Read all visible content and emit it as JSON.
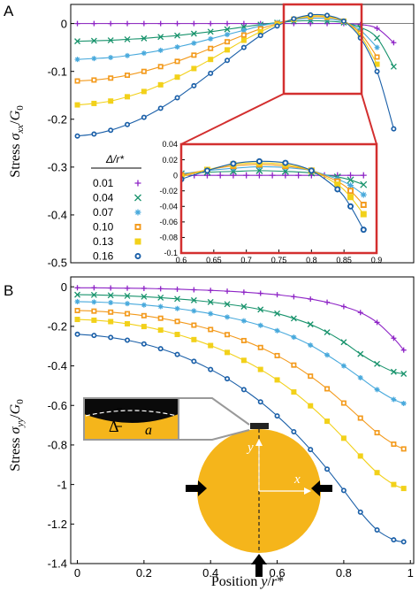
{
  "figure": {
    "x_label": "Position y/r*",
    "legend_title": "Δ/r*",
    "schematic": {
      "delta_label": "Δ",
      "a_label": "a",
      "x_label": "x",
      "y_label": "y"
    }
  },
  "chart_data": [
    {
      "type": "scatter",
      "panel_label": "A",
      "ylabel": "Stress σ_xx/G_0",
      "xlabel": "",
      "xlim": [
        -0.02,
        1.01
      ],
      "ylim": [
        -0.5,
        0.04
      ],
      "x_ticks": [],
      "y_ticks": [
        "0",
        "-0.1",
        "-0.2",
        "-0.3",
        "-0.4",
        "-0.5"
      ],
      "series": [
        {
          "name": "0.01",
          "color": "#8e24c6",
          "marker": "plus",
          "x": [
            0.0,
            0.05,
            0.1,
            0.15,
            0.2,
            0.25,
            0.3,
            0.35,
            0.4,
            0.45,
            0.5,
            0.55,
            0.6,
            0.65,
            0.7,
            0.75,
            0.8,
            0.85,
            0.9,
            0.95
          ],
          "values": [
            0.0,
            0.0,
            0.0,
            0.0,
            0.0,
            0.0,
            0.0,
            0.0,
            0.0,
            0.0,
            0.0,
            0.0,
            0.0,
            0.0,
            0.0,
            0.0,
            0.0,
            -0.002,
            -0.01,
            -0.04
          ]
        },
        {
          "name": "0.04",
          "color": "#18936c",
          "marker": "x",
          "x": [
            0.0,
            0.05,
            0.1,
            0.15,
            0.2,
            0.25,
            0.3,
            0.35,
            0.4,
            0.45,
            0.5,
            0.55,
            0.6,
            0.65,
            0.7,
            0.75,
            0.8,
            0.85,
            0.9,
            0.95
          ],
          "values": [
            -0.037,
            -0.036,
            -0.035,
            -0.033,
            -0.031,
            -0.028,
            -0.025,
            -0.021,
            -0.017,
            -0.012,
            -0.007,
            -0.002,
            0.002,
            0.005,
            0.006,
            0.005,
            0.002,
            -0.008,
            -0.03,
            -0.09
          ]
        },
        {
          "name": "0.07",
          "color": "#48a9dc",
          "marker": "asterisk",
          "x": [
            0.0,
            0.05,
            0.1,
            0.15,
            0.2,
            0.25,
            0.3,
            0.35,
            0.4,
            0.45,
            0.5,
            0.55,
            0.6,
            0.65,
            0.7,
            0.75,
            0.8,
            0.85,
            0.9
          ],
          "values": [
            -0.075,
            -0.073,
            -0.071,
            -0.067,
            -0.062,
            -0.056,
            -0.049,
            -0.041,
            -0.032,
            -0.023,
            -0.014,
            -0.005,
            0.002,
            0.008,
            0.011,
            0.01,
            0.004,
            -0.014,
            -0.05
          ]
        },
        {
          "name": "0.10",
          "color": "#f39a1c",
          "marker": "square",
          "x": [
            0.0,
            0.05,
            0.1,
            0.15,
            0.2,
            0.25,
            0.3,
            0.35,
            0.4,
            0.45,
            0.5,
            0.55,
            0.6,
            0.65,
            0.7,
            0.75,
            0.8,
            0.85,
            0.9
          ],
          "values": [
            -0.12,
            -0.118,
            -0.114,
            -0.108,
            -0.1,
            -0.09,
            -0.079,
            -0.066,
            -0.052,
            -0.038,
            -0.024,
            -0.011,
            0.0,
            0.009,
            0.014,
            0.013,
            0.005,
            -0.02,
            -0.07
          ]
        },
        {
          "name": "0.13",
          "color": "#f2d11a",
          "marker": "filled-square",
          "x": [
            0.0,
            0.05,
            0.1,
            0.15,
            0.2,
            0.25,
            0.3,
            0.35,
            0.4,
            0.45,
            0.5,
            0.55,
            0.6,
            0.65,
            0.7,
            0.75,
            0.8,
            0.85,
            0.9
          ],
          "values": [
            -0.17,
            -0.167,
            -0.162,
            -0.153,
            -0.142,
            -0.128,
            -0.112,
            -0.094,
            -0.075,
            -0.055,
            -0.035,
            -0.017,
            -0.002,
            0.009,
            0.016,
            0.015,
            0.005,
            -0.025,
            -0.085
          ]
        },
        {
          "name": "0.16",
          "color": "#1a5fa8",
          "marker": "circle",
          "x": [
            0.0,
            0.05,
            0.1,
            0.15,
            0.2,
            0.25,
            0.3,
            0.35,
            0.4,
            0.45,
            0.5,
            0.55,
            0.6,
            0.65,
            0.7,
            0.75,
            0.8,
            0.85,
            0.9,
            0.95
          ],
          "values": [
            -0.235,
            -0.231,
            -0.223,
            -0.211,
            -0.196,
            -0.177,
            -0.155,
            -0.13,
            -0.104,
            -0.077,
            -0.05,
            -0.025,
            -0.005,
            0.01,
            0.018,
            0.017,
            0.005,
            -0.03,
            -0.1,
            -0.22
          ]
        }
      ]
    },
    {
      "type": "scatter",
      "panel_label": "inset",
      "xlim": [
        0.6,
        0.9
      ],
      "ylim": [
        -0.1,
        0.04
      ],
      "x_ticks": [
        "0.6",
        "0.65",
        "0.7",
        "0.75",
        "0.8",
        "0.85",
        "0.9"
      ],
      "y_ticks": [
        "0.04",
        "0.02",
        "0",
        "-0.02",
        "-0.04",
        "-0.06",
        "-0.08",
        "-0.1"
      ],
      "series": [
        {
          "name": "0.01",
          "x": [
            0.6,
            0.62,
            0.64,
            0.66,
            0.68,
            0.7,
            0.72,
            0.74,
            0.76,
            0.78,
            0.8,
            0.82,
            0.84,
            0.86,
            0.88
          ],
          "values": [
            0.0,
            0.0,
            0.0,
            0.0,
            0.0,
            0.0,
            0.0,
            0.0,
            0.0,
            0.0,
            0.0,
            0.0,
            0.0,
            0.0,
            0.0
          ]
        },
        {
          "name": "0.04",
          "x": [
            0.6,
            0.64,
            0.68,
            0.72,
            0.76,
            0.8,
            0.84,
            0.86,
            0.88
          ],
          "values": [
            0.002,
            0.004,
            0.005,
            0.006,
            0.005,
            0.003,
            -0.002,
            -0.006,
            -0.012
          ]
        },
        {
          "name": "0.07",
          "x": [
            0.6,
            0.64,
            0.68,
            0.72,
            0.76,
            0.8,
            0.84,
            0.86,
            0.88
          ],
          "values": [
            0.002,
            0.006,
            0.009,
            0.011,
            0.01,
            0.006,
            -0.005,
            -0.013,
            -0.025
          ]
        },
        {
          "name": "0.10",
          "x": [
            0.6,
            0.64,
            0.68,
            0.72,
            0.76,
            0.8,
            0.84,
            0.86,
            0.88
          ],
          "values": [
            0.0,
            0.007,
            0.012,
            0.014,
            0.012,
            0.006,
            -0.008,
            -0.02,
            -0.038
          ]
        },
        {
          "name": "0.13",
          "x": [
            0.6,
            0.64,
            0.68,
            0.72,
            0.76,
            0.8,
            0.84,
            0.86,
            0.88
          ],
          "values": [
            -0.002,
            0.007,
            0.014,
            0.016,
            0.014,
            0.006,
            -0.012,
            -0.028,
            -0.05
          ]
        },
        {
          "name": "0.16",
          "x": [
            0.6,
            0.64,
            0.68,
            0.72,
            0.76,
            0.8,
            0.84,
            0.86,
            0.88
          ],
          "values": [
            -0.005,
            0.006,
            0.015,
            0.018,
            0.016,
            0.006,
            -0.018,
            -0.04,
            -0.07
          ]
        }
      ]
    },
    {
      "type": "scatter",
      "panel_label": "B",
      "ylabel": "Stress σ_yy/G_0",
      "xlabel": "Position y/r*",
      "xlim": [
        -0.02,
        1.01
      ],
      "ylim": [
        -1.4,
        0.05
      ],
      "x_ticks": [
        "0",
        "0.2",
        "0.4",
        "0.6",
        "0.8",
        "1"
      ],
      "y_ticks": [
        "0",
        "-0.2",
        "-0.4",
        "-0.6",
        "-0.8",
        "-1",
        "-1.2",
        "-1.4"
      ],
      "series": [
        {
          "name": "0.01",
          "x": [
            0.0,
            0.05,
            0.1,
            0.15,
            0.2,
            0.25,
            0.3,
            0.35,
            0.4,
            0.45,
            0.5,
            0.55,
            0.6,
            0.65,
            0.7,
            0.75,
            0.8,
            0.85,
            0.9,
            0.95,
            0.98
          ],
          "values": [
            -0.005,
            -0.005,
            -0.006,
            -0.007,
            -0.008,
            -0.01,
            -0.012,
            -0.015,
            -0.018,
            -0.022,
            -0.027,
            -0.033,
            -0.04,
            -0.05,
            -0.062,
            -0.078,
            -0.1,
            -0.13,
            -0.18,
            -0.26,
            -0.32
          ]
        },
        {
          "name": "0.04",
          "x": [
            0.0,
            0.05,
            0.1,
            0.15,
            0.2,
            0.25,
            0.3,
            0.35,
            0.4,
            0.45,
            0.5,
            0.55,
            0.6,
            0.65,
            0.7,
            0.75,
            0.8,
            0.85,
            0.9,
            0.95,
            0.98
          ],
          "values": [
            -0.04,
            -0.041,
            -0.043,
            -0.046,
            -0.05,
            -0.055,
            -0.061,
            -0.068,
            -0.077,
            -0.088,
            -0.1,
            -0.115,
            -0.135,
            -0.16,
            -0.19,
            -0.23,
            -0.28,
            -0.34,
            -0.39,
            -0.43,
            -0.44
          ]
        },
        {
          "name": "0.07",
          "x": [
            0.0,
            0.05,
            0.1,
            0.15,
            0.2,
            0.25,
            0.3,
            0.35,
            0.4,
            0.45,
            0.5,
            0.55,
            0.6,
            0.65,
            0.7,
            0.75,
            0.8,
            0.85,
            0.9,
            0.95,
            0.98
          ],
          "values": [
            -0.075,
            -0.077,
            -0.08,
            -0.085,
            -0.092,
            -0.1,
            -0.11,
            -0.122,
            -0.136,
            -0.153,
            -0.172,
            -0.195,
            -0.222,
            -0.255,
            -0.295,
            -0.345,
            -0.4,
            -0.46,
            -0.52,
            -0.57,
            -0.59
          ]
        },
        {
          "name": "0.10",
          "x": [
            0.0,
            0.05,
            0.1,
            0.15,
            0.2,
            0.25,
            0.3,
            0.35,
            0.4,
            0.45,
            0.5,
            0.55,
            0.6,
            0.65,
            0.7,
            0.75,
            0.8,
            0.85,
            0.9,
            0.95,
            0.98
          ],
          "values": [
            -0.12,
            -0.123,
            -0.128,
            -0.136,
            -0.146,
            -0.159,
            -0.175,
            -0.194,
            -0.216,
            -0.242,
            -0.272,
            -0.307,
            -0.348,
            -0.396,
            -0.452,
            -0.516,
            -0.588,
            -0.664,
            -0.738,
            -0.796,
            -0.82
          ]
        },
        {
          "name": "0.13",
          "x": [
            0.0,
            0.05,
            0.1,
            0.15,
            0.2,
            0.25,
            0.3,
            0.35,
            0.4,
            0.45,
            0.5,
            0.55,
            0.6,
            0.65,
            0.7,
            0.75,
            0.8,
            0.85,
            0.9,
            0.95,
            0.98
          ],
          "values": [
            -0.165,
            -0.169,
            -0.176,
            -0.187,
            -0.201,
            -0.219,
            -0.241,
            -0.267,
            -0.297,
            -0.332,
            -0.372,
            -0.418,
            -0.471,
            -0.532,
            -0.602,
            -0.68,
            -0.766,
            -0.856,
            -0.94,
            -1.0,
            -1.02
          ]
        },
        {
          "name": "0.16",
          "x": [
            0.0,
            0.05,
            0.1,
            0.15,
            0.2,
            0.25,
            0.3,
            0.35,
            0.4,
            0.45,
            0.5,
            0.55,
            0.6,
            0.65,
            0.7,
            0.75,
            0.8,
            0.85,
            0.9,
            0.95,
            0.98
          ],
          "values": [
            -0.24,
            -0.246,
            -0.256,
            -0.27,
            -0.289,
            -0.313,
            -0.342,
            -0.377,
            -0.418,
            -0.465,
            -0.52,
            -0.582,
            -0.653,
            -0.733,
            -0.823,
            -0.922,
            -1.03,
            -1.14,
            -1.23,
            -1.28,
            -1.29
          ]
        }
      ]
    }
  ]
}
